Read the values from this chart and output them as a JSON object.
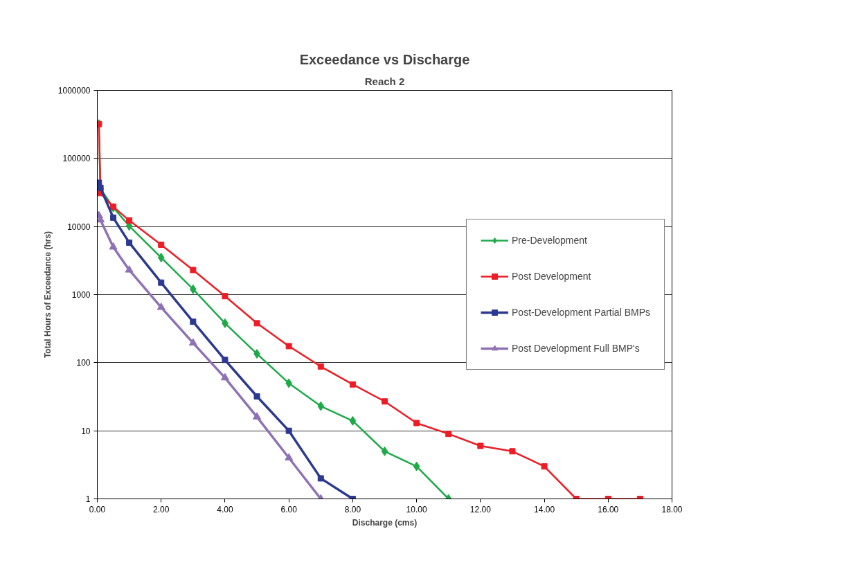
{
  "chart_data": {
    "type": "line",
    "title": "Exceedance vs Discharge",
    "subtitle": "Reach 2",
    "xlabel": "Discharge (cms)",
    "ylabel": "Total Hours of Exceedance (hrs)",
    "log": "y",
    "grid": "y",
    "legend": "right",
    "xlim": [
      0,
      18
    ],
    "ylim": [
      1,
      1000000
    ],
    "xticks": [
      {
        "value": 0,
        "label": "0.00"
      },
      {
        "value": 2,
        "label": "2.00"
      },
      {
        "value": 4,
        "label": "4.00"
      },
      {
        "value": 6,
        "label": "6.00"
      },
      {
        "value": 8,
        "label": "8.00"
      },
      {
        "value": 10,
        "label": "10.00"
      },
      {
        "value": 12,
        "label": "12.00"
      },
      {
        "value": 14,
        "label": "14.00"
      },
      {
        "value": 16,
        "label": "16.00"
      },
      {
        "value": 18,
        "label": "18.00"
      }
    ],
    "yticks": [
      1,
      10,
      100,
      1000,
      10000,
      100000,
      1000000
    ],
    "series": [
      {
        "name": "Pre-Development",
        "color": "#1faa4a",
        "marker": "diamond",
        "x": [
          0.05,
          0.1,
          0.5,
          1,
          2,
          3,
          4,
          5,
          6,
          7,
          8,
          9,
          10,
          11
        ],
        "values": [
          320000,
          36000,
          19000,
          10200,
          3500,
          1200,
          380,
          135,
          50,
          23,
          14,
          5,
          3,
          1
        ]
      },
      {
        "name": "Post Development",
        "color": "#ee1c25",
        "marker": "square",
        "x": [
          0.05,
          0.1,
          0.5,
          1,
          2,
          3,
          4,
          5,
          6,
          7,
          8,
          9,
          10,
          11,
          12,
          13,
          14,
          15,
          16,
          17
        ],
        "values": [
          320000,
          31000,
          19500,
          12300,
          5400,
          2300,
          950,
          380,
          175,
          88,
          48,
          27,
          13,
          9,
          6,
          5,
          3,
          1,
          1,
          1
        ]
      },
      {
        "name": "Post-Development Partial BMPs",
        "color": "#2b3990",
        "marker": "square",
        "x": [
          0.05,
          0.1,
          0.5,
          1,
          2,
          3,
          4,
          5,
          6,
          7,
          8
        ],
        "values": [
          44000,
          37000,
          13500,
          5800,
          1500,
          400,
          110,
          32,
          10,
          2,
          1
        ]
      },
      {
        "name": "Post Development Full BMP's",
        "color": "#8e72b5",
        "marker": "triangle",
        "x": [
          0.05,
          0.1,
          0.5,
          1,
          2,
          3,
          4,
          5,
          6,
          7
        ],
        "values": [
          14500,
          12500,
          5000,
          2300,
          650,
          195,
          60,
          16,
          4,
          1
        ]
      }
    ]
  }
}
